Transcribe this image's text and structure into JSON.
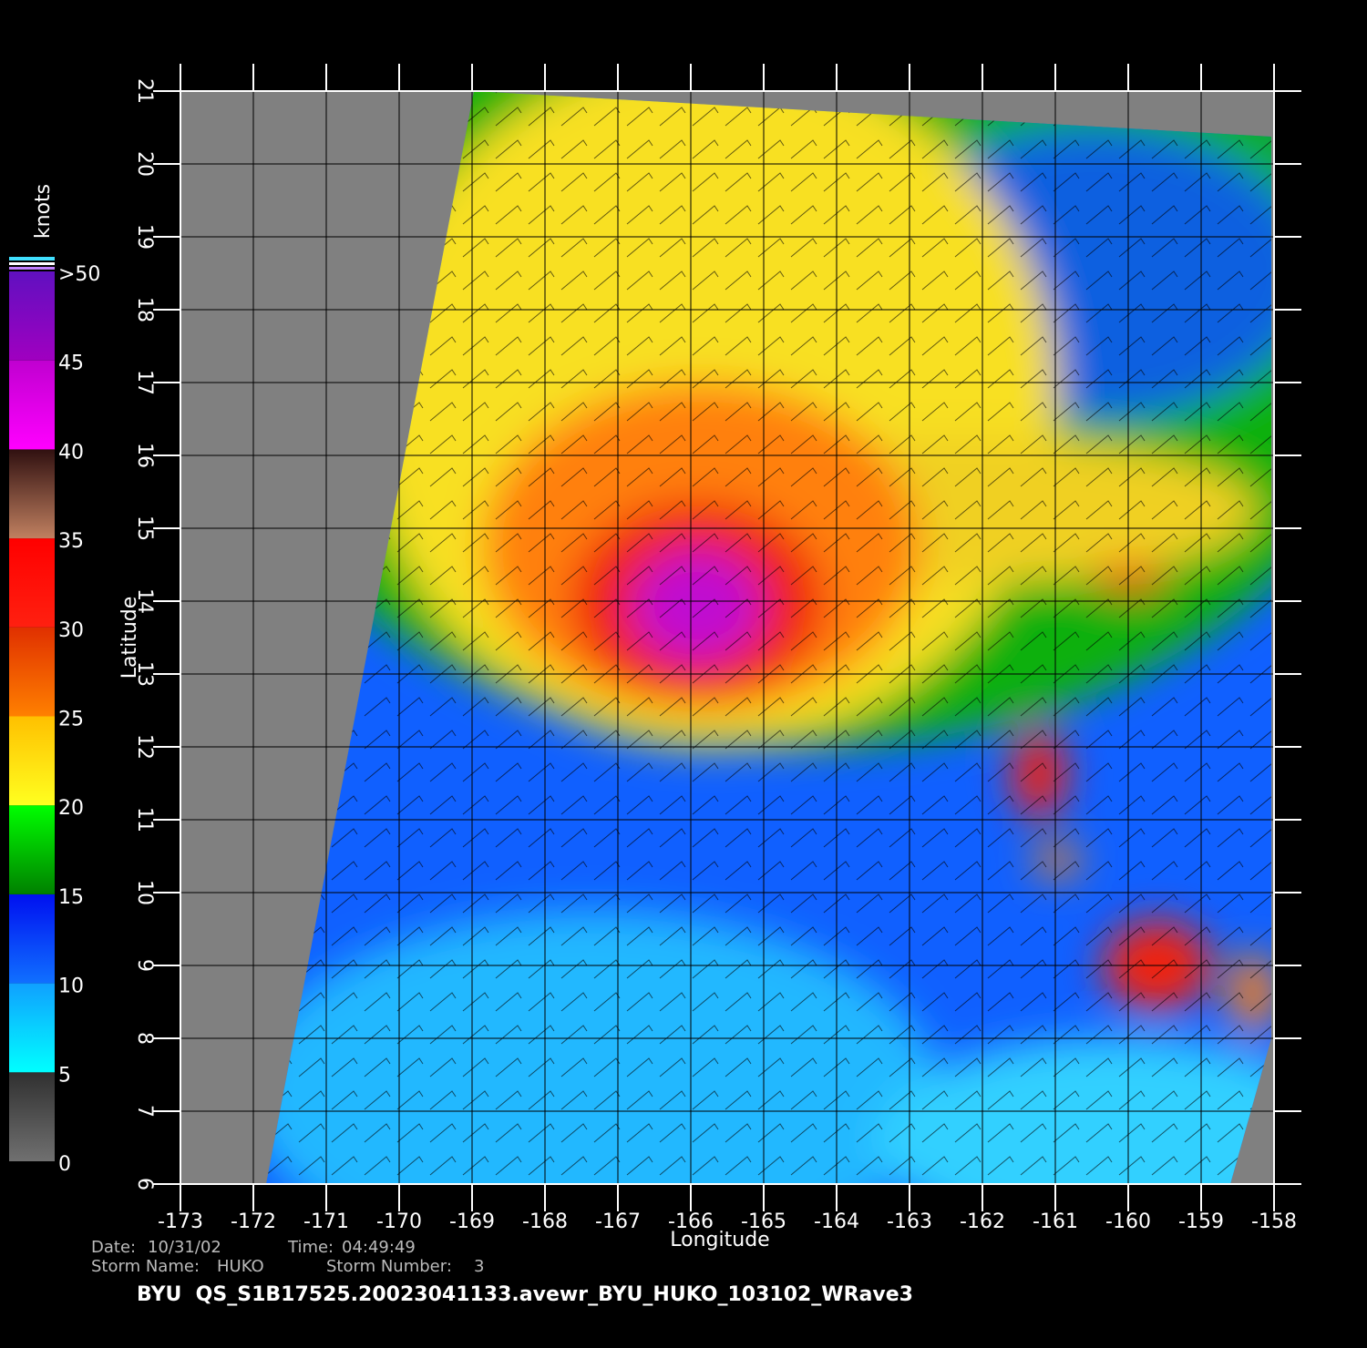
{
  "map": {
    "colorbar": {
      "title": "knots",
      "ticks": [
        0,
        5,
        10,
        15,
        20,
        25,
        30,
        35,
        40,
        45,
        {
          "value": 50,
          "label": ">50"
        }
      ],
      "colors": [
        [
          "#707070",
          "#303030"
        ],
        [
          "#00ffff",
          "#10a0ff"
        ],
        [
          "#1070ff",
          "#0010f0"
        ],
        [
          "#008000",
          "#00ff00"
        ],
        [
          "#ffff20",
          "#ffc000"
        ],
        [
          "#ff8000",
          "#e03000"
        ],
        [
          "#ff2010",
          "#ff0000"
        ],
        [
          "#c08060",
          "#301010"
        ],
        [
          "#ff00ff",
          "#c000d0"
        ],
        [
          "#a000c0",
          "#6010c0"
        ]
      ]
    },
    "axes": {
      "x_label": "Longitude",
      "y_label": "Latitude",
      "lon_ticks": [
        -173,
        -172,
        -171,
        -170,
        -169,
        -168,
        -167,
        -166,
        -165,
        -164,
        -163,
        -162,
        -161,
        -160,
        -159,
        -158
      ],
      "lat_ticks": [
        6,
        7,
        8,
        9,
        10,
        11,
        12,
        13,
        14,
        15,
        16,
        17,
        18,
        19,
        20,
        21
      ]
    },
    "info": {
      "date_label": "Date:",
      "date": "10/31/02",
      "time_label": "Time:",
      "time": "04:49:49",
      "storm_name_label": "Storm Name:",
      "storm_name": "HUKO",
      "storm_number_label": "Storm Number:",
      "storm_number": 3
    },
    "title": "BYU  QS_S1B17525.20023041133.avewr_BYU_HUKO_103102_WRave3"
  }
}
